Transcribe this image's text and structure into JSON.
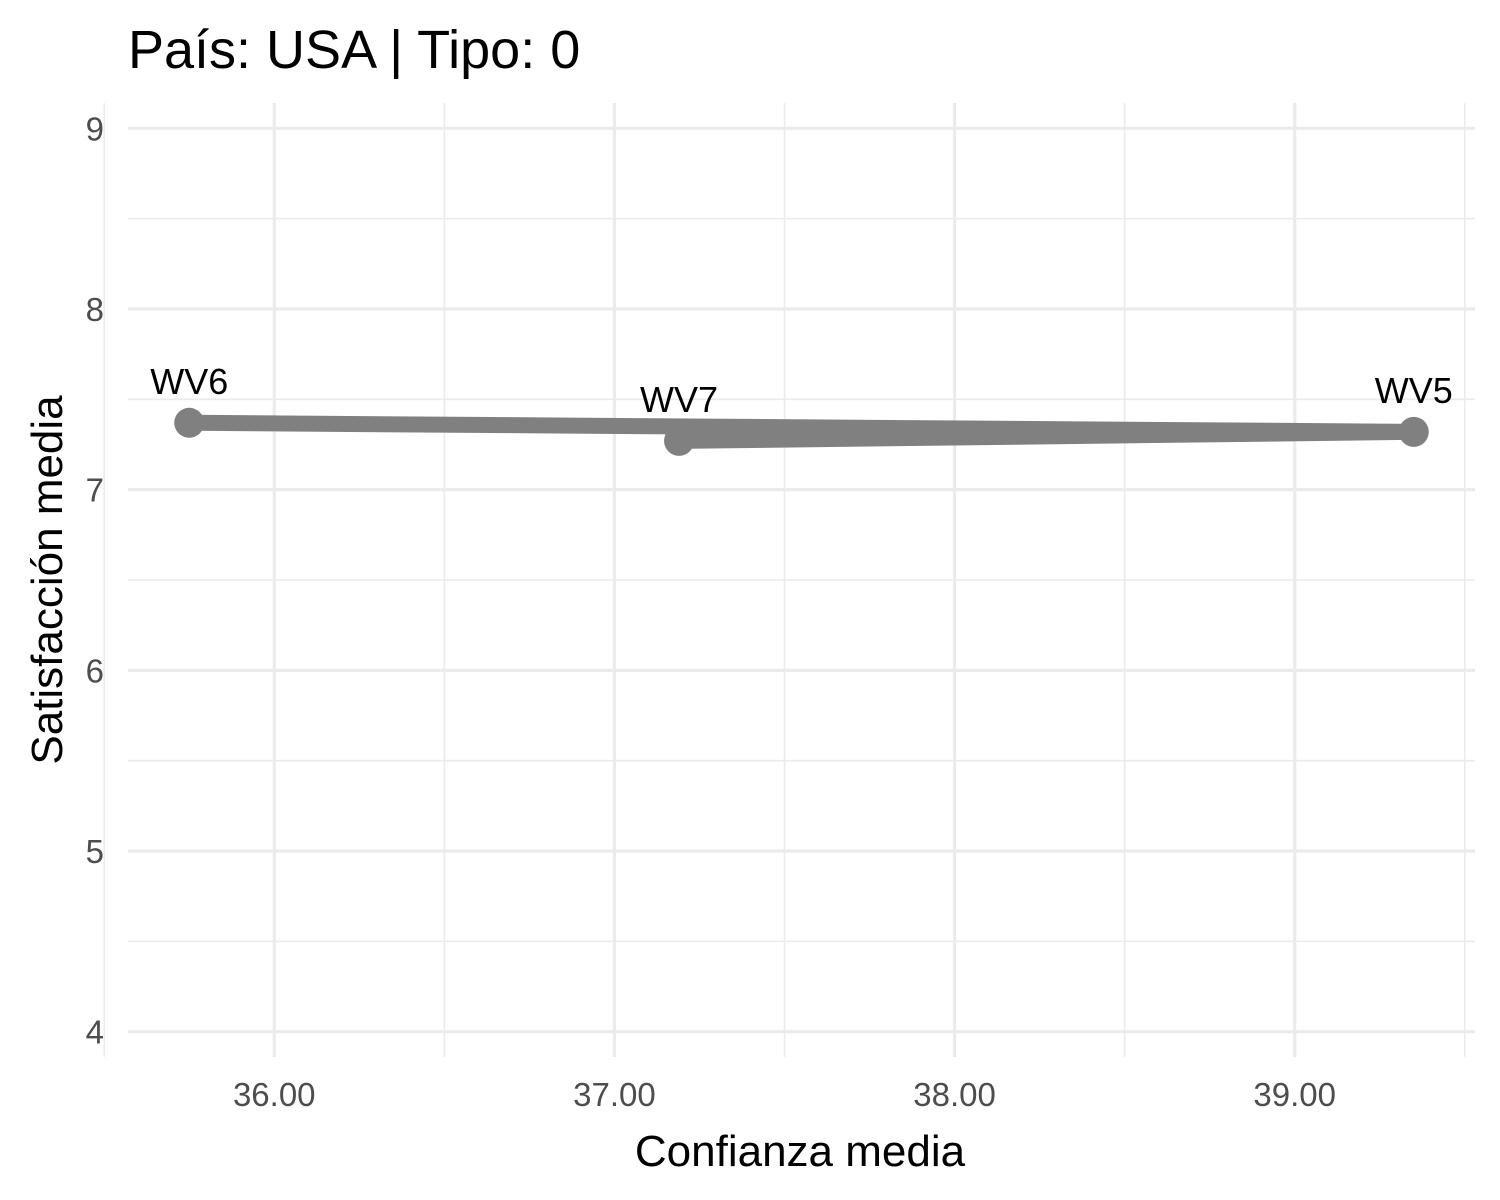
{
  "chart_data": {
    "type": "line",
    "title": "País: USA | Tipo: 0",
    "xlabel": "Confianza media",
    "ylabel": "Satisfacción media",
    "xlim": [
      35.57,
      39.53
    ],
    "ylim": [
      3.86,
      9.14
    ],
    "x_ticks": [
      36,
      37,
      38,
      39
    ],
    "x_tick_labels": [
      "36.00",
      "37.00",
      "38.00",
      "39.00"
    ],
    "x_minor_ticks": [
      35.5,
      36.5,
      37.5,
      38.5,
      39.5
    ],
    "y_ticks": [
      4,
      5,
      6,
      7,
      8,
      9
    ],
    "y_tick_labels": [
      "4",
      "5",
      "6",
      "7",
      "8",
      "9"
    ],
    "y_minor_ticks": [
      4.5,
      5.5,
      6.5,
      7.5,
      8.5
    ],
    "grid": true,
    "series": [
      {
        "color": "#808080",
        "points": [
          {
            "label": "WV5",
            "x": 39.35,
            "y": 7.32
          },
          {
            "label": "WV6",
            "x": 35.75,
            "y": 7.37
          },
          {
            "label": "WV7",
            "x": 37.19,
            "y": 7.27
          }
        ],
        "path_order": [
          "WV6",
          "WV5",
          "WV7"
        ]
      }
    ]
  }
}
